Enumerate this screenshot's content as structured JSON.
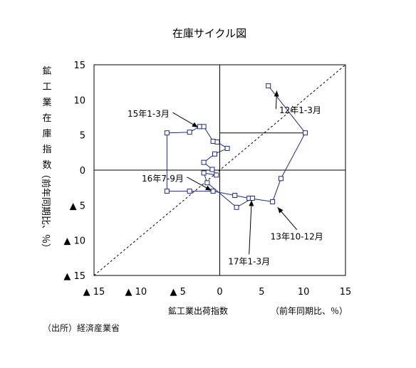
{
  "chart_data": {
    "type": "scatter",
    "title": "在庫サイクル図",
    "xlabel": "鉱工業出荷指数",
    "xlabel_unit": "（前年同期比、％）",
    "ylabel": "鉱工業在庫指数",
    "ylabel_unit": "（前年同期比、％）",
    "xlim": [
      -15,
      15
    ],
    "ylim": [
      -15,
      15
    ],
    "x_ticks": [
      -15,
      -10,
      -5,
      0,
      5,
      10,
      15
    ],
    "y_ticks": [
      15,
      10,
      5,
      0,
      -5,
      -10,
      -15
    ],
    "x_tick_labels": [
      "▲ 15",
      "▲ 10",
      "▲ 5",
      "0",
      "5",
      "10",
      "15"
    ],
    "y_tick_labels": [
      "15",
      "10",
      "5",
      "0",
      "▲ 5",
      "▲ 10",
      "▲ 15"
    ],
    "reference_line": {
      "style": "dashed",
      "from": [
        -15,
        -15
      ],
      "to": [
        15,
        15
      ]
    },
    "guides": [
      {
        "from": [
          0,
          5.3
        ],
        "to": [
          10.2,
          5.3
        ]
      }
    ],
    "series": [
      {
        "points": [
          [
            5.8,
            12.0
          ],
          [
            10.2,
            5.3
          ],
          [
            7.3,
            -1.2
          ],
          [
            6.3,
            -4.5
          ],
          [
            3.5,
            -4.0
          ],
          [
            1.8,
            -3.6
          ],
          [
            -0.8,
            -3.0
          ],
          [
            -3.6,
            -3.0
          ],
          [
            -6.3,
            -3.0
          ],
          [
            -6.3,
            5.3
          ],
          [
            -3.6,
            5.4
          ],
          [
            -2.4,
            6.2
          ],
          [
            -1.9,
            6.2
          ],
          [
            -0.8,
            4.1
          ],
          [
            -0.3,
            4.0
          ],
          [
            0.9,
            3.1
          ],
          [
            -0.6,
            2.3
          ],
          [
            -1.9,
            1.1
          ],
          [
            -0.9,
            0.1
          ],
          [
            -0.4,
            -0.7
          ],
          [
            -1.9,
            -0.4
          ],
          [
            -1.5,
            -1.8
          ],
          [
            2.0,
            -5.3
          ],
          [
            3.9,
            -4.0
          ]
        ]
      }
    ],
    "annotations": [
      {
        "text": "12年1-3月",
        "point": [
          6.8,
          11.3
        ],
        "label_at": [
          9.6,
          8.5
        ]
      },
      {
        "text": "15年1-3月",
        "point": [
          -2.6,
          6.1
        ],
        "label_at": [
          -8.5,
          8.0
        ]
      },
      {
        "text": "16年7-9月",
        "point": [
          -1.0,
          -2.9
        ],
        "label_at": [
          -6.8,
          -1.2
        ]
      },
      {
        "text": "13年10-12月",
        "point": [
          6.9,
          -5.3
        ],
        "label_at": [
          9.2,
          -9.5
        ]
      },
      {
        "text": "17年1-3月",
        "point": [
          3.8,
          -4.3
        ],
        "label_at": [
          3.5,
          -13.0
        ]
      }
    ]
  },
  "source": "（出所）経済産業省"
}
